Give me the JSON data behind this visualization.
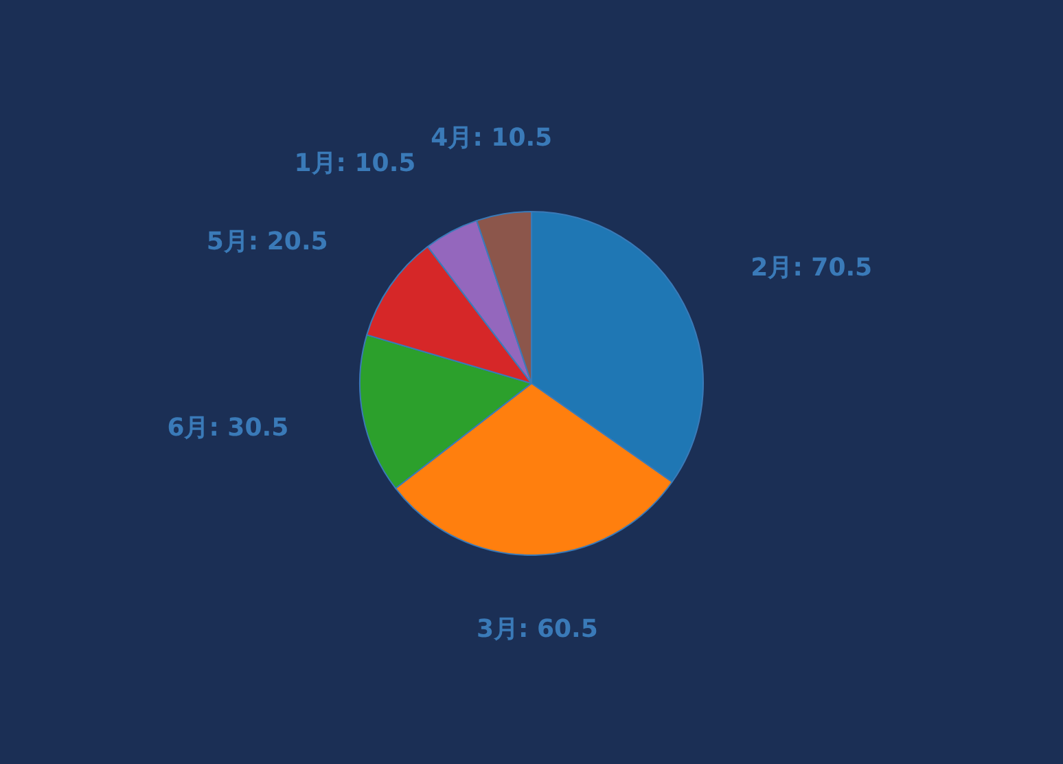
{
  "chart_data": {
    "type": "pie",
    "categories": [
      "2月",
      "3月",
      "6月",
      "5月",
      "1月",
      "4月"
    ],
    "values": [
      70.5,
      60.5,
      30.5,
      20.5,
      10.5,
      10.5
    ],
    "colors": [
      "#1f77b4",
      "#ff7f0e",
      "#2ca02c",
      "#d62728",
      "#9467bd",
      "#8c564b"
    ],
    "value_labels": [
      ": 70.5",
      ": 60.5",
      ": 30.5",
      ": 20.5",
      ": 10.5",
      ": 10.5"
    ],
    "legend": false
  }
}
